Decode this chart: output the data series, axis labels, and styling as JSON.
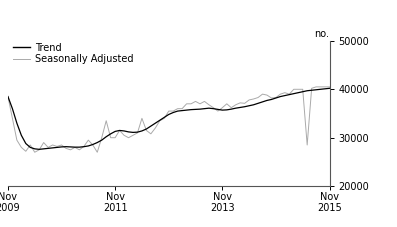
{
  "ylabel_right": "no.",
  "legend": [
    "Trend",
    "Seasonally Adjusted"
  ],
  "legend_colors": [
    "#000000",
    "#aaaaaa"
  ],
  "ylim": [
    20000,
    50000
  ],
  "yticks": [
    20000,
    30000,
    40000,
    50000
  ],
  "background_color": "#ffffff",
  "trend_y": [
    38500,
    36000,
    33000,
    30500,
    28800,
    28000,
    27700,
    27600,
    27700,
    27800,
    27900,
    28000,
    28100,
    28150,
    28100,
    28050,
    28050,
    28150,
    28300,
    28600,
    29000,
    29500,
    30200,
    30800,
    31300,
    31500,
    31400,
    31200,
    31100,
    31150,
    31400,
    31800,
    32400,
    33000,
    33600,
    34200,
    34800,
    35200,
    35500,
    35600,
    35700,
    35800,
    35850,
    35900,
    36000,
    36100,
    36000,
    35850,
    35700,
    35750,
    35900,
    36100,
    36250,
    36400,
    36600,
    36800,
    37100,
    37400,
    37700,
    37900,
    38200,
    38500,
    38700,
    38900,
    39100,
    39300,
    39500,
    39700,
    39800,
    39900,
    40000,
    40100,
    40200
  ],
  "seasonal_y": [
    38500,
    34000,
    29500,
    28000,
    27200,
    28500,
    27000,
    27500,
    29000,
    28000,
    28500,
    28200,
    28500,
    27800,
    27500,
    28000,
    27500,
    28200,
    29500,
    28500,
    27000,
    30000,
    33500,
    30000,
    30000,
    31500,
    30500,
    30000,
    30500,
    31000,
    34000,
    31500,
    30800,
    32000,
    33500,
    34000,
    35500,
    35500,
    36000,
    36000,
    37000,
    37000,
    37500,
    37000,
    37500,
    36800,
    36200,
    35500,
    36200,
    37000,
    36200,
    36800,
    37200,
    37100,
    37800,
    38000,
    38300,
    39000,
    38800,
    38200,
    38300,
    39000,
    39300,
    39000,
    40000,
    40000,
    40000,
    28500,
    40200,
    40500,
    40500,
    40500,
    40500
  ]
}
